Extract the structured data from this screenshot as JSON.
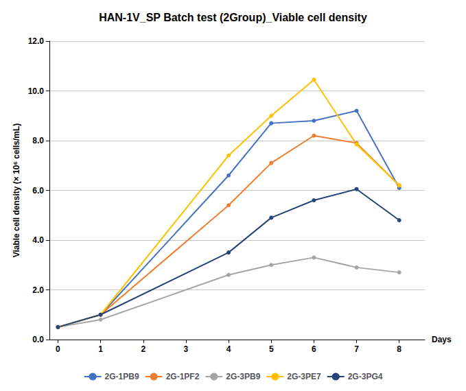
{
  "chart_data": {
    "type": "line",
    "title": "HAN-1V_SP Batch test (2Group)_Viable cell density",
    "x_label": "Days",
    "y_label": "Viable cell density (× 10⁶ cells/mL)",
    "x": [
      0,
      1,
      4,
      5,
      6,
      7,
      8
    ],
    "xlim": [
      -0.2,
      8.6
    ],
    "xticks": [
      0,
      1,
      2,
      3,
      4,
      5,
      6,
      7,
      8
    ],
    "ylim": [
      0,
      12.0
    ],
    "yticks": [
      {
        "value": 0.0,
        "label": "0.0"
      },
      {
        "value": 2.0,
        "label": "2.0"
      },
      {
        "value": 4.0,
        "label": "4.0"
      },
      {
        "value": 6.0,
        "label": "6.0"
      },
      {
        "value": 8.0,
        "label": "8.0"
      },
      {
        "value": 10.0,
        "label": "10.0"
      },
      {
        "value": 12.0,
        "label": "12.0"
      }
    ],
    "grid": true,
    "legend": "bottom",
    "series": [
      {
        "name": "2G-1PB9",
        "color": "#4472C4",
        "marker": "circle",
        "values": [
          0.5,
          1.0,
          6.6,
          8.7,
          8.8,
          9.2,
          6.1
        ]
      },
      {
        "name": "2G-1PF2",
        "color": "#ED7D31",
        "marker": "circle",
        "values": [
          0.5,
          1.0,
          5.4,
          7.1,
          8.2,
          7.9,
          6.2
        ]
      },
      {
        "name": "2G-3PB9",
        "color": "#A5A5A5",
        "marker": "circle",
        "values": [
          0.5,
          0.8,
          2.6,
          3.0,
          3.3,
          2.9,
          2.7
        ]
      },
      {
        "name": "2G-3PE7",
        "color": "#FFC000",
        "marker": "circle",
        "values": [
          0.5,
          1.0,
          7.4,
          9.0,
          10.45,
          7.85,
          6.2
        ]
      },
      {
        "name": "2G-3PG4",
        "color": "#264478",
        "marker": "circle",
        "values": [
          0.5,
          1.0,
          3.5,
          4.9,
          5.6,
          6.05,
          4.8
        ]
      }
    ]
  }
}
